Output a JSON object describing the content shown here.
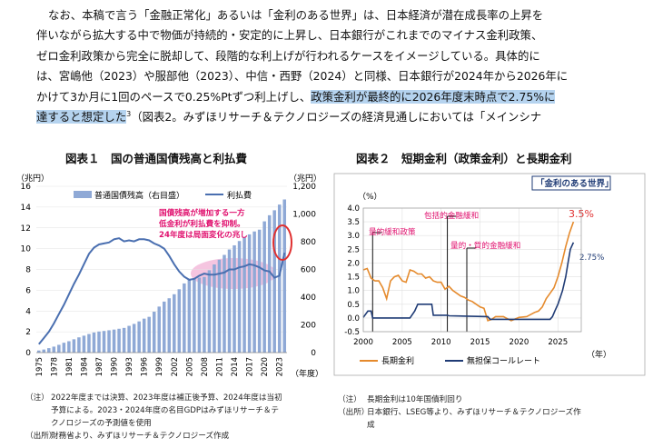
{
  "paragraph": {
    "line1": "なお、本稿で言う「金融正常化」あるいは「金利のある世界」は、日本経済が潜在成長率の上昇を",
    "line2": "伴いながら拡大する中で物価が持続的・安定的に上昇し、日本銀行がこれまでのマイナス金利政策、",
    "line3": "ゼロ金利政策から完全に脱却して、段階的な利上げが行われるケースをイメージしている。具体的に",
    "line4": "は、宮嶋他（2023）や服部他（2023）、中信・西野（2024）と同様、日本銀行が2024年から2026年に",
    "line5_a": "かけて3か月に1回のペースで0.25%Ptずつ利上げし、",
    "line5_hl": "政策金利が最終的に2026年度末時点で2.75%に",
    "line6_hl": "達すると想定した",
    "line6_sup": "3",
    "line6_b": "（図表2。みずほリサーチ＆テクノロジーズの経済見通しにおいては「メインシナ"
  },
  "figure1": {
    "title": "図表１　国の普通国債残高と利払費",
    "y_left_unit": "（兆円）",
    "y_right_unit": "（兆円）",
    "x_unit": "（年度）",
    "legend_bar": "普通国債残高（右目盛）",
    "legend_line": "利払費",
    "annotation": [
      "国債残高が増加する一方",
      "低金利が利払費を抑制。",
      "24年度は局面変化の兆し"
    ],
    "notes": [
      {
        "tag": "（注）",
        "text": "2022年度までは決算、2023年度は補正後予算、2024年度は当初"
      },
      {
        "tag": "",
        "text": "予算による。2023・2024年度の名目GDPはみずほリサーチ＆テ"
      },
      {
        "tag": "",
        "text": "クノロジーズの予測値を使用"
      },
      {
        "tag": "（出所）",
        "text": "財務省より、みずほリサーチ＆テクノロジーズ作成"
      }
    ]
  },
  "figure2": {
    "title": "図表２　短期金利（政策金利）と長期金利",
    "y_unit": "（%）",
    "x_unit": "（年）",
    "header_box": "「金利のある世界」",
    "labels": {
      "qe": "量的緩和政策",
      "comprehensive": "包括的金融緩和",
      "qqe": "量的・質的金融緩和"
    },
    "end_labels": {
      "long": "3.5%",
      "short": "2.75%"
    },
    "legend_long": "長期金利",
    "legend_short": "無担保コールレート",
    "notes": [
      {
        "tag": "（注）",
        "text": "長期金利は10年国債利回り"
      },
      {
        "tag": "（出所）",
        "text": "日本銀行、LSEG等より、みずほリサーチ＆テクノロジーズ作"
      },
      {
        "tag": "",
        "text": "成"
      }
    ]
  },
  "colors": {
    "bar": "#8fa9d6",
    "line": "#4a6fb0",
    "annotation": "#e0106e",
    "ellipse": "#f3b6d8",
    "circle": "#e03030",
    "long_rate": "#e58a2c",
    "short_rate": "#1f3b75",
    "marker": "#e0106e",
    "highlight": "#b5d3ef",
    "header_box": "#1f3b75"
  },
  "chart_data": [
    {
      "type": "bar",
      "title": "国の普通国債残高と利払費",
      "xlabel": "（年度）",
      "ylabel_left": "（兆円）",
      "ylabel_right": "（兆円）",
      "ylim_left": [
        0,
        16
      ],
      "ylim_right": [
        0,
        1200
      ],
      "yticks_left": [
        0,
        2,
        4,
        6,
        8,
        10,
        12,
        14,
        16
      ],
      "yticks_right": [
        0,
        200,
        400,
        600,
        800,
        1000,
        1200
      ],
      "x_tick_labels": [
        "1975",
        "1978",
        "1981",
        "1984",
        "1987",
        "1990",
        "1993",
        "1996",
        "1999",
        "2002",
        "2005",
        "2008",
        "2011",
        "2014",
        "2017",
        "2020",
        "2023"
      ],
      "categories": [
        1975,
        1976,
        1977,
        1978,
        1979,
        1980,
        1981,
        1982,
        1983,
        1984,
        1985,
        1986,
        1987,
        1988,
        1989,
        1990,
        1991,
        1992,
        1993,
        1994,
        1995,
        1996,
        1997,
        1998,
        1999,
        2000,
        2001,
        2002,
        2003,
        2004,
        2005,
        2006,
        2007,
        2008,
        2009,
        2010,
        2011,
        2012,
        2013,
        2014,
        2015,
        2016,
        2017,
        2018,
        2019,
        2020,
        2021,
        2022,
        2023,
        2024
      ],
      "series": [
        {
          "name": "普通国債残高（右目盛）",
          "axis": "right",
          "values": [
            15,
            22,
            32,
            43,
            56,
            71,
            82,
            96,
            110,
            122,
            134,
            145,
            152,
            156,
            161,
            166,
            172,
            178,
            193,
            207,
            225,
            245,
            258,
            295,
            332,
            368,
            392,
            421,
            457,
            499,
            527,
            532,
            541,
            546,
            594,
            636,
            670,
            705,
            744,
            774,
            805,
            831,
            853,
            874,
            887,
            947,
            991,
            1027,
            1068,
            1105
          ]
        },
        {
          "name": "利払費",
          "axis": "left",
          "values": [
            0.8,
            1.4,
            2.0,
            2.8,
            3.7,
            4.6,
            5.6,
            6.6,
            7.5,
            8.5,
            9.5,
            10.1,
            10.4,
            10.5,
            10.6,
            10.9,
            11.0,
            10.7,
            10.8,
            10.7,
            10.9,
            10.9,
            10.8,
            10.5,
            10.3,
            10.0,
            9.3,
            8.5,
            7.8,
            7.3,
            7.0,
            7.1,
            7.4,
            7.6,
            7.5,
            7.5,
            7.6,
            7.7,
            8.0,
            8.0,
            8.2,
            8.3,
            8.5,
            8.4,
            8.2,
            7.9,
            7.8,
            7.2,
            7.4,
            9.6
          ]
        }
      ]
    },
    {
      "type": "line",
      "title": "短期金利（政策金利）と長期金利",
      "xlabel": "（年）",
      "ylabel": "（%）",
      "xlim": [
        2000,
        2028
      ],
      "ylim": [
        -0.5,
        4.0
      ],
      "xticks": [
        2000,
        2005,
        2010,
        2015,
        2020,
        2025
      ],
      "yticks": [
        -0.5,
        0.0,
        0.5,
        1.0,
        1.5,
        2.0,
        2.5,
        3.0,
        3.5,
        4.0
      ],
      "event_markers": [
        2001.2,
        2010.8,
        2013.3
      ],
      "series": [
        {
          "name": "長期金利",
          "x": [
            2000,
            2000.5,
            2001,
            2001.5,
            2002,
            2002.5,
            2003,
            2003.5,
            2004,
            2004.5,
            2005,
            2005.5,
            2006,
            2006.5,
            2007,
            2007.5,
            2008,
            2008.5,
            2009,
            2009.5,
            2010,
            2010.5,
            2011,
            2011.5,
            2012,
            2012.5,
            2013,
            2013.5,
            2014,
            2014.5,
            2015,
            2015.5,
            2016,
            2016.5,
            2017,
            2018,
            2019,
            2020,
            2021,
            2022,
            2022.5,
            2023,
            2023.5,
            2024,
            2024.5,
            2025,
            2025.5,
            2026,
            2026.5,
            2027
          ],
          "values": [
            1.75,
            1.8,
            1.45,
            1.35,
            1.35,
            1.1,
            0.7,
            1.35,
            1.5,
            1.55,
            1.35,
            1.3,
            1.75,
            1.7,
            1.6,
            1.6,
            1.45,
            1.5,
            1.35,
            1.3,
            1.3,
            1.05,
            1.15,
            1.0,
            0.9,
            0.8,
            0.75,
            0.65,
            0.6,
            0.5,
            0.4,
            0.35,
            -0.1,
            -0.05,
            0.05,
            0.05,
            -0.1,
            0.02,
            0.05,
            0.2,
            0.25,
            0.4,
            0.7,
            0.9,
            1.1,
            1.5,
            2.0,
            2.6,
            3.1,
            3.5
          ]
        },
        {
          "name": "無担保コールレート",
          "x": [
            2000,
            2000.6,
            2001,
            2001.2,
            2006,
            2006.6,
            2007,
            2008.8,
            2009,
            2010.8,
            2011,
            2016,
            2016.3,
            2024,
            2024.3,
            2024.6,
            2025,
            2025.3,
            2025.6,
            2026,
            2026.3,
            2026.6,
            2027
          ],
          "values": [
            0.02,
            0.25,
            0.25,
            0.0,
            0.0,
            0.25,
            0.5,
            0.5,
            0.1,
            0.1,
            0.08,
            0.05,
            -0.05,
            -0.05,
            0.05,
            0.25,
            0.5,
            0.75,
            1.0,
            1.5,
            2.0,
            2.5,
            2.75
          ]
        }
      ]
    }
  ]
}
